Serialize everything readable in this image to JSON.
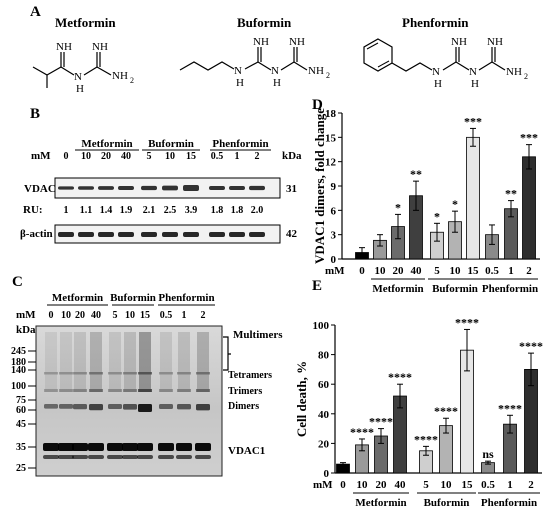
{
  "panels": {
    "a": "A",
    "b": "B",
    "c": "C",
    "d": "D",
    "e": "E"
  },
  "panel_a": {
    "drugs": [
      {
        "name": "Metformin"
      },
      {
        "name": "Buformin"
      },
      {
        "name": "Phenformin"
      }
    ],
    "atoms": {
      "nh": "NH",
      "h": "H",
      "n": "N",
      "nh2": "NH",
      "sub2": "2"
    }
  },
  "panel_b": {
    "mm_label": "mM",
    "kda_label": "kDa",
    "doses": [
      "0",
      "10",
      "20",
      "40",
      "5",
      "10",
      "15",
      "0.5",
      "1",
      "2"
    ],
    "groups": [
      "Metformin",
      "Buformin",
      "Phenformin"
    ],
    "vdac1_label": "VDAC1",
    "vdac1_kda": "31",
    "ru_label": "RU:",
    "ru_values": [
      "1",
      "1.1",
      "1.4",
      "1.9",
      "2.1",
      "2.5",
      "3.9",
      "1.8",
      "1.8",
      "2.0"
    ],
    "actin_label": "β-actin",
    "actin_kda": "42"
  },
  "panel_c": {
    "mm_label": "mM",
    "kda_label": "kDa",
    "doses": [
      "0",
      "10",
      "20",
      "40",
      "5",
      "10",
      "15",
      "0.5",
      "1",
      "2"
    ],
    "groups": [
      "Metformin",
      "Buformin",
      "Phenformin"
    ],
    "markers": [
      "245",
      "180",
      "140",
      "100",
      "75",
      "60",
      "45",
      "35",
      "25"
    ],
    "bands": {
      "multimers": "Multimers",
      "tetramers": "Tetramers",
      "trimers": "Trimers",
      "dimers": "Dimers",
      "vdac1": "VDAC1"
    }
  },
  "panel_d": {
    "mm_label": "mM",
    "groups": [
      "Metformin",
      "Buformin",
      "Phenformin"
    ],
    "colors": [
      "#000000",
      "#9a9a9a",
      "#6b6b6b",
      "#3f3f3f",
      "#cfcfcf",
      "#b3b3b3",
      "#e6e6e6",
      "#8a8a8a",
      "#5a5a5a",
      "#2e2e2e"
    ]
  },
  "panel_e": {
    "mm_label": "mM",
    "groups": [
      "Metformin",
      "Buformin",
      "Phenformin"
    ],
    "colors": [
      "#000000",
      "#9a9a9a",
      "#6b6b6b",
      "#3f3f3f",
      "#cfcfcf",
      "#b3b3b3",
      "#e6e6e6",
      "#8a8a8a",
      "#5a5a5a",
      "#2e2e2e"
    ]
  },
  "chart_data": [
    {
      "type": "bar",
      "panel": "D",
      "categories": [
        "0",
        "10",
        "20",
        "40",
        "5",
        "10",
        "15",
        "0.5",
        "1",
        "2"
      ],
      "values": [
        0.8,
        2.3,
        4.0,
        7.8,
        3.3,
        4.6,
        15.0,
        3.0,
        6.2,
        12.6
      ],
      "errors": [
        0.6,
        0.7,
        1.5,
        1.8,
        1.1,
        1.3,
        1.1,
        1.2,
        1.0,
        1.5
      ],
      "significance": [
        "",
        "",
        "*",
        "**",
        "*",
        "*",
        "***",
        "",
        "**",
        "***"
      ],
      "ylabel": "VDAC1 dimers, fold change",
      "ylim": [
        0,
        18
      ],
      "yticks": [
        "0",
        "3",
        "6",
        "9",
        "12",
        "15",
        "18"
      ]
    },
    {
      "type": "bar",
      "panel": "E",
      "categories": [
        "0",
        "10",
        "20",
        "40",
        "5",
        "10",
        "15",
        "0.5",
        "1",
        "2"
      ],
      "values": [
        6,
        19,
        25,
        52,
        15,
        32,
        83,
        7,
        33,
        70
      ],
      "errors": [
        1,
        4,
        5,
        8,
        3,
        5,
        14,
        1,
        6,
        11
      ],
      "significance": [
        "",
        "****",
        "****",
        "****",
        "****",
        "****",
        "****",
        "ns",
        "****",
        "****"
      ],
      "ylabel": "Cell death, %",
      "ylim": [
        0,
        100
      ],
      "yticks": [
        "0",
        "20",
        "40",
        "60",
        "80",
        "100"
      ]
    }
  ]
}
